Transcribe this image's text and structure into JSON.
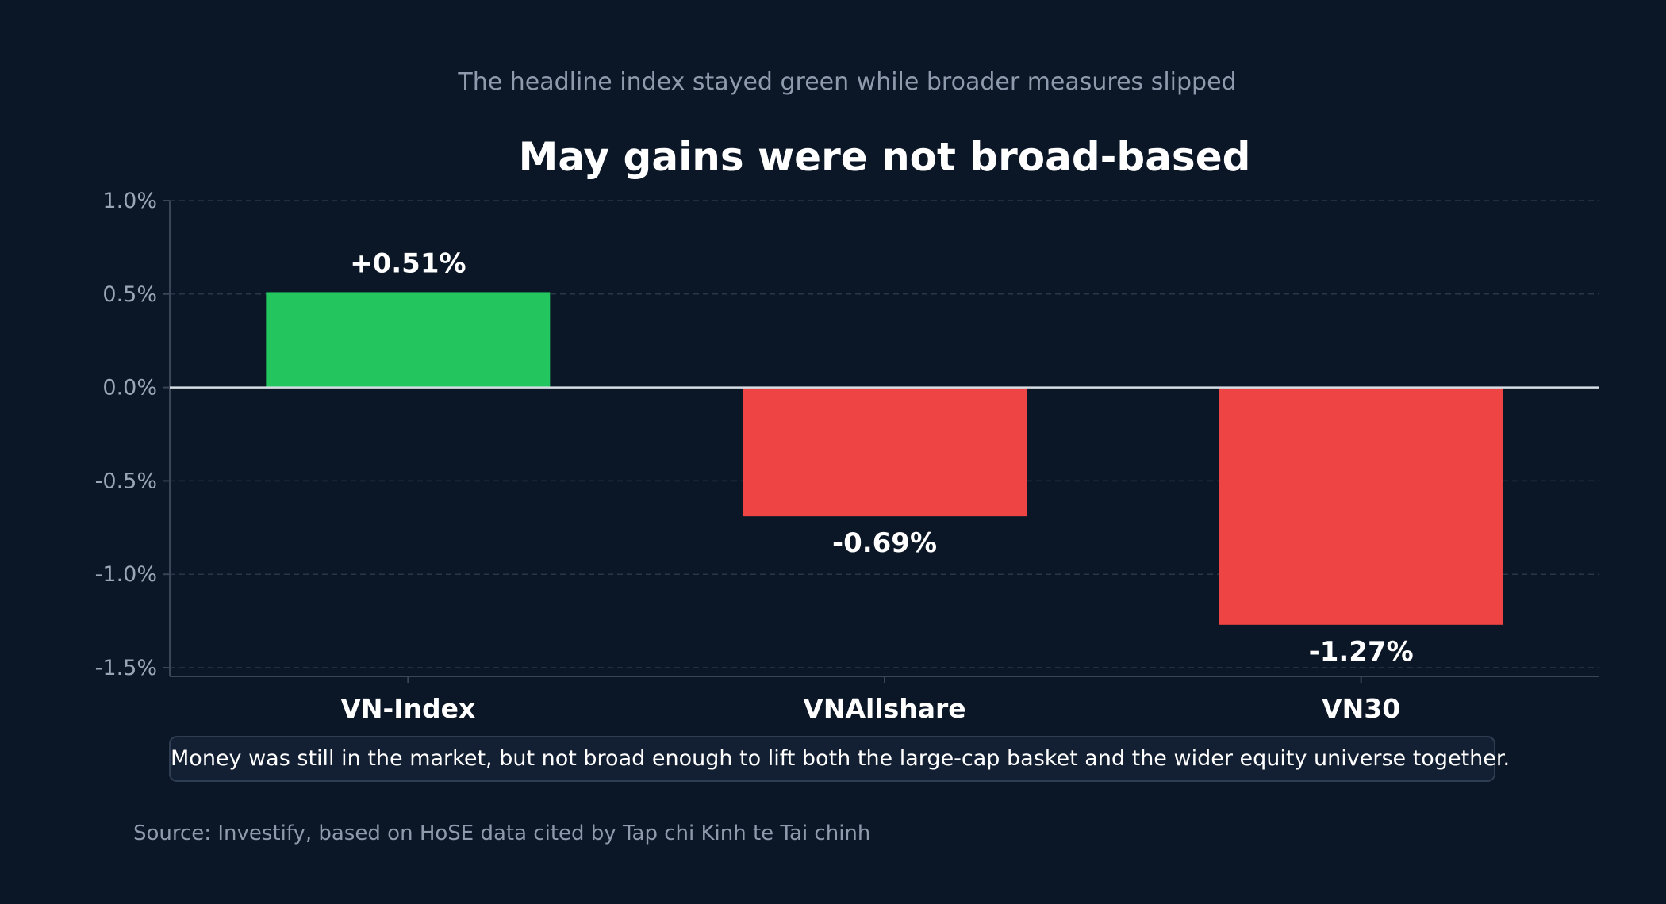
{
  "colors": {
    "background": "#0b1626",
    "positive": "#22c55e",
    "negative": "#ef4444",
    "grid": "#2a3647",
    "zero_line": "#d7dde5",
    "axis": "#3a4658"
  },
  "chart_data": {
    "type": "bar",
    "subtitle": "The headline index stayed green while broader measures slipped",
    "title": "May gains were not broad-based",
    "categories": [
      "VN-Index",
      "VNAllshare",
      "VN30"
    ],
    "values": [
      0.51,
      -0.69,
      -1.27
    ],
    "data_labels": [
      "+0.51%",
      "-0.69%",
      "-1.27%"
    ],
    "ylim": [
      -1.5,
      1.0
    ],
    "yticks": [
      1.0,
      0.5,
      0.0,
      -0.5,
      -1.0,
      -1.5
    ],
    "ytick_labels": [
      "1.0%",
      "0.5%",
      "0.0%",
      "-0.5%",
      "-1.0%",
      "-1.5%"
    ],
    "xlabel": "",
    "ylabel": "",
    "grid": "horizontal dashed",
    "legend": "none",
    "annotation": "Money was still in the market, but not broad enough to lift both the large-cap basket and the wider equity universe together.",
    "source": "Source: Investify, based on HoSE data cited by Tap chi Kinh te Tai chinh"
  }
}
